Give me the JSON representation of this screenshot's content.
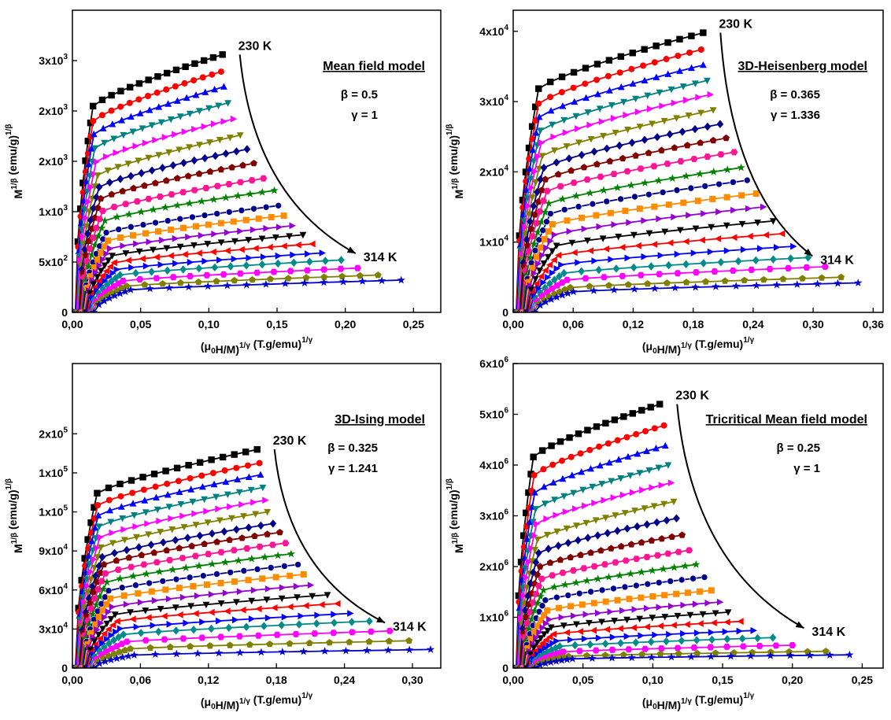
{
  "figure": {
    "background": "#ffffff"
  },
  "series_style": {
    "colors": [
      "#000000",
      "#ff0000",
      "#0000ff",
      "#008080",
      "#ff00ff",
      "#808000",
      "#00008b",
      "#800000",
      "#ff1493",
      "#008000",
      "#00008b",
      "#ff8c00",
      "#9400d3",
      "#000000",
      "#ff0000",
      "#0000ff",
      "#008b8b",
      "#ff00ff",
      "#808000",
      "#0000cd",
      "#800000"
    ],
    "markers": [
      "square",
      "circle",
      "triangle-up",
      "triangle-down",
      "triangle-right",
      "triangle-down",
      "diamond",
      "pentagon",
      "hexagon",
      "star",
      "sphere",
      "square",
      "triangle-right",
      "triangle-down",
      "triangle-left",
      "triangle-right",
      "diamond",
      "hexagon",
      "pentagon",
      "star",
      "sphere"
    ]
  },
  "chart_data": [
    {
      "type": "scatter",
      "model": "Mean field model",
      "beta": "β = 0.5",
      "gamma": "γ = 1",
      "temp_high": "230 K",
      "temp_low": "314 K",
      "xlabel": "(μ0H/M)1/γ (T.g/emu)1/γ",
      "ylabel": "M1/β (emu/g)1/β",
      "xlim": [
        0,
        0.27
      ],
      "ylim": [
        0,
        3000
      ],
      "xticks": [
        {
          "v": 0,
          "t": "0,00"
        },
        {
          "v": 0.05,
          "t": "0,05"
        },
        {
          "v": 0.1,
          "t": "0,10"
        },
        {
          "v": 0.15,
          "t": "0,15"
        },
        {
          "v": 0.2,
          "t": "0,20"
        },
        {
          "v": 0.25,
          "t": "0,25"
        }
      ],
      "yticks": [
        {
          "v": 0,
          "t": "0"
        },
        {
          "v": 500,
          "t": "5x10",
          "e": "2"
        },
        {
          "v": 1000,
          "t": "1x10",
          "e": "3"
        },
        {
          "v": 1500,
          "t": "2x10",
          "e": "3"
        },
        {
          "v": 2000,
          "t": "2x10",
          "e": "3"
        },
        {
          "v": 2500,
          "t": "3x10",
          "e": "3"
        }
      ],
      "series_endpoints": [
        [
          0.11,
          2560
        ],
        [
          0.109,
          2390
        ],
        [
          0.111,
          2240
        ],
        [
          0.114,
          2080
        ],
        [
          0.118,
          1920
        ],
        [
          0.123,
          1760
        ],
        [
          0.128,
          1620
        ],
        [
          0.133,
          1480
        ],
        [
          0.14,
          1330
        ],
        [
          0.148,
          1210
        ],
        [
          0.151,
          1060
        ],
        [
          0.155,
          960
        ],
        [
          0.161,
          860
        ],
        [
          0.169,
          770
        ],
        [
          0.176,
          680
        ],
        [
          0.183,
          590
        ],
        [
          0.197,
          520
        ],
        [
          0.209,
          440
        ],
        [
          0.224,
          370
        ],
        [
          0.241,
          320
        ]
      ]
    },
    {
      "type": "scatter",
      "model": "3D-Heisenberg model",
      "beta": "β = 0.365",
      "gamma": "γ = 1.336",
      "temp_high": "230 K",
      "temp_low": "314 K",
      "xlabel": "(μ0H/M)1/γ (T.g/emu)1/γ",
      "ylabel": "M1/β (emu/g)1/β",
      "xlim": [
        0,
        0.37
      ],
      "ylim": [
        0,
        43000
      ],
      "xticks": [
        {
          "v": 0,
          "t": "0,00"
        },
        {
          "v": 0.06,
          "t": "0,06"
        },
        {
          "v": 0.12,
          "t": "0,12"
        },
        {
          "v": 0.18,
          "t": "0,18"
        },
        {
          "v": 0.24,
          "t": "0,24"
        },
        {
          "v": 0.3,
          "t": "0,30"
        },
        {
          "v": 0.36,
          "t": "0,36"
        }
      ],
      "yticks": [
        {
          "v": 0,
          "t": "0"
        },
        {
          "v": 10000,
          "t": "1x10",
          "e": "4"
        },
        {
          "v": 20000,
          "t": "2x10",
          "e": "4"
        },
        {
          "v": 30000,
          "t": "3x10",
          "e": "4"
        },
        {
          "v": 40000,
          "t": "4x10",
          "e": "4"
        }
      ],
      "series_endpoints": [
        [
          0.19,
          39800
        ],
        [
          0.188,
          37400
        ],
        [
          0.19,
          35200
        ],
        [
          0.194,
          33000
        ],
        [
          0.197,
          31000
        ],
        [
          0.2,
          28800
        ],
        [
          0.207,
          26800
        ],
        [
          0.213,
          24800
        ],
        [
          0.221,
          22800
        ],
        [
          0.228,
          20600
        ],
        [
          0.234,
          18800
        ],
        [
          0.243,
          16900
        ],
        [
          0.25,
          15000
        ],
        [
          0.26,
          13000
        ],
        [
          0.269,
          11200
        ],
        [
          0.28,
          9400
        ],
        [
          0.295,
          7800
        ],
        [
          0.312,
          6500
        ],
        [
          0.328,
          5000
        ],
        [
          0.345,
          4200
        ]
      ]
    },
    {
      "type": "scatter",
      "model": "3D-Ising model",
      "beta": "β = 0.325",
      "gamma": "γ = 1.241",
      "temp_high": "230 K",
      "temp_low": "314 K",
      "xlabel": "(μ0H/M)1/γ (T.g/emu)1/γ",
      "ylabel": "M1/β (emu/g)1/β",
      "xlim": [
        0,
        0.325
      ],
      "ylim": [
        0,
        1.56
      ],
      "xticks": [
        {
          "v": 0,
          "t": "0,00"
        },
        {
          "v": 0.06,
          "t": "0,06"
        },
        {
          "v": 0.12,
          "t": "0,12"
        },
        {
          "v": 0.18,
          "t": "0,18"
        },
        {
          "v": 0.24,
          "t": "0,24"
        },
        {
          "v": 0.3,
          "t": "0,30"
        }
      ],
      "yticks": [
        {
          "v": 0,
          "t": "0"
        },
        {
          "v": 0.2,
          "t": "3x10",
          "e": "4"
        },
        {
          "v": 0.4,
          "t": "6x10",
          "e": "4"
        },
        {
          "v": 0.6,
          "t": "9x10",
          "e": "4"
        },
        {
          "v": 0.8,
          "t": "1x10",
          "e": "5"
        },
        {
          "v": 1.0,
          "t": "1x10",
          "e": "5"
        },
        {
          "v": 1.2,
          "t": "2x10",
          "e": "5"
        }
      ],
      "series_endpoints": [
        [
          0.163,
          1.12
        ],
        [
          0.165,
          1.05
        ],
        [
          0.166,
          0.99
        ],
        [
          0.168,
          0.925
        ],
        [
          0.17,
          0.86
        ],
        [
          0.172,
          0.8
        ],
        [
          0.177,
          0.74
        ],
        [
          0.183,
          0.695
        ],
        [
          0.188,
          0.64
        ],
        [
          0.193,
          0.585
        ],
        [
          0.199,
          0.53
        ],
        [
          0.204,
          0.48
        ],
        [
          0.21,
          0.425
        ],
        [
          0.225,
          0.375
        ],
        [
          0.234,
          0.33
        ],
        [
          0.245,
          0.28
        ],
        [
          0.262,
          0.24
        ],
        [
          0.28,
          0.19
        ],
        [
          0.297,
          0.14
        ],
        [
          0.316,
          0.095
        ]
      ]
    },
    {
      "type": "scatter",
      "model": "Tricritical Mean field model",
      "beta": "β = 0.25",
      "gamma": "γ = 1",
      "temp_high": "230 K",
      "temp_low": "314 K",
      "xlabel": "(μ0H/M)1/γ (T.g/emu)1/γ",
      "ylabel": "M1/β (emu/g)1/β",
      "xlim": [
        0,
        0.265
      ],
      "ylim": [
        0,
        6000000
      ],
      "xticks": [
        {
          "v": 0,
          "t": "0,00"
        },
        {
          "v": 0.05,
          "t": "0,05"
        },
        {
          "v": 0.1,
          "t": "0,10"
        },
        {
          "v": 0.15,
          "t": "0,15"
        },
        {
          "v": 0.2,
          "t": "0,20"
        },
        {
          "v": 0.25,
          "t": "0,25"
        }
      ],
      "yticks": [
        {
          "v": 0,
          "t": "0"
        },
        {
          "v": 1000000,
          "t": "1x10",
          "e": "6"
        },
        {
          "v": 2000000,
          "t": "2x10",
          "e": "6"
        },
        {
          "v": 3000000,
          "t": "3x10",
          "e": "6"
        },
        {
          "v": 4000000,
          "t": "4x10",
          "e": "6"
        },
        {
          "v": 5000000,
          "t": "5x10",
          "e": "6"
        },
        {
          "v": 6000000,
          "t": "6x10",
          "e": "6"
        }
      ],
      "series_endpoints": [
        [
          0.105,
          5200000
        ],
        [
          0.108,
          4780000
        ],
        [
          0.109,
          4380000
        ],
        [
          0.111,
          4000000
        ],
        [
          0.113,
          3650000
        ],
        [
          0.115,
          3280000
        ],
        [
          0.117,
          2950000
        ],
        [
          0.121,
          2620000
        ],
        [
          0.126,
          2320000
        ],
        [
          0.131,
          2040000
        ],
        [
          0.137,
          1790000
        ],
        [
          0.142,
          1530000
        ],
        [
          0.148,
          1300000
        ],
        [
          0.154,
          1100000
        ],
        [
          0.163,
          920000
        ],
        [
          0.172,
          740000
        ],
        [
          0.186,
          600000
        ],
        [
          0.2,
          450000
        ],
        [
          0.224,
          330000
        ],
        [
          0.241,
          260000
        ]
      ]
    }
  ]
}
